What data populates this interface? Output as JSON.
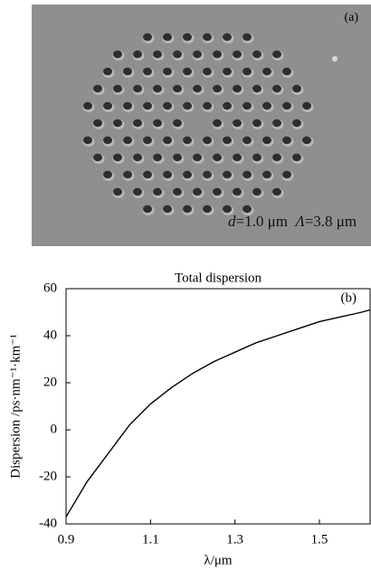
{
  "image_a": {
    "label": "(a)",
    "caption_d": "d",
    "caption_mid": "=1.0 μm  ",
    "caption_lambda": "Λ",
    "caption_end": "=3.8 μm"
  },
  "chart_data": {
    "type": "line",
    "title": "Total dispersion",
    "annotation": "(b)",
    "x_label": "λ/μm",
    "y_label": "Dispersion /ps·nm⁻¹·km⁻¹",
    "x": [
      0.9,
      0.95,
      1.0,
      1.05,
      1.1,
      1.15,
      1.2,
      1.25,
      1.3,
      1.35,
      1.4,
      1.45,
      1.5,
      1.55,
      1.6,
      1.62
    ],
    "values": [
      -37,
      -22,
      -10,
      2,
      11,
      18,
      24,
      29,
      33,
      37,
      40,
      43,
      46,
      48,
      50,
      51
    ],
    "color": "#000000",
    "xlim": [
      0.9,
      1.62
    ],
    "ylim": [
      -40,
      60
    ],
    "xticks": [
      0.9,
      1.1,
      1.3,
      1.5
    ],
    "yticks": [
      -40,
      -20,
      0,
      20,
      40,
      60
    ],
    "grid": false
  }
}
